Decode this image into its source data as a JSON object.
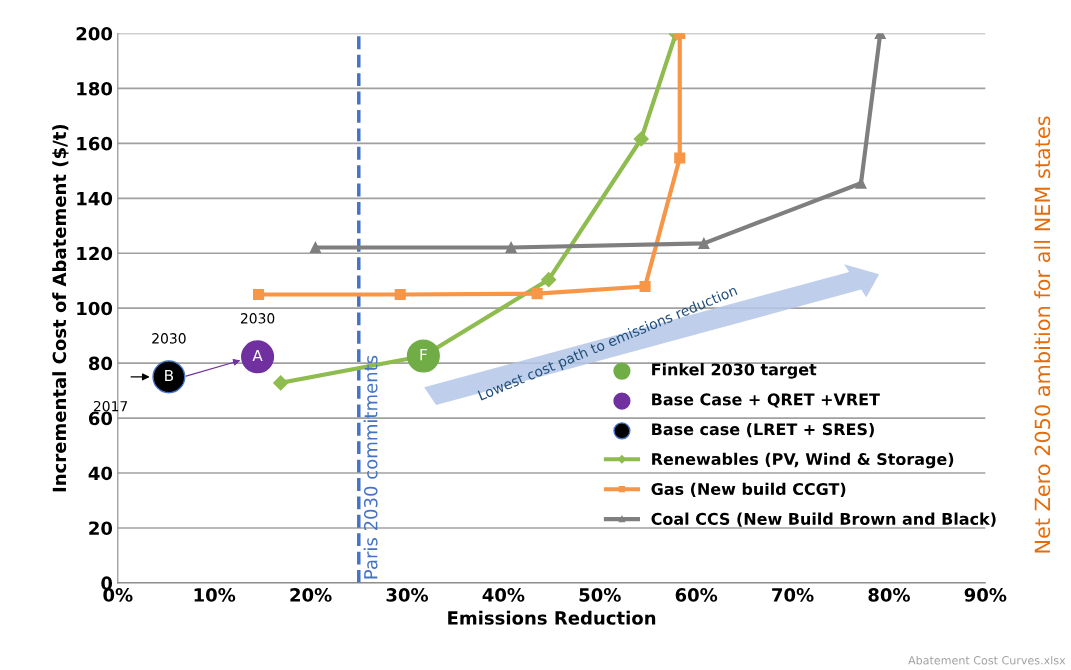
{
  "chart_data": {
    "type": "line",
    "xlabel": "Emissions Reduction",
    "ylabel": "Incremental Cost of Abatement ($/t)",
    "y2label": "Net Zero 2050 ambition for all NEM states",
    "xlim": [
      0,
      90
    ],
    "ylim": [
      0,
      200
    ],
    "xticks": [
      {
        "value": 0,
        "label": "0%"
      },
      {
        "value": 10,
        "label": "10%"
      },
      {
        "value": 20,
        "label": "20%"
      },
      {
        "value": 30,
        "label": "30%"
      },
      {
        "value": 40,
        "label": "40%"
      },
      {
        "value": 50,
        "label": "50%"
      },
      {
        "value": 60,
        "label": "60%"
      },
      {
        "value": 70,
        "label": "70%"
      },
      {
        "value": 80,
        "label": "80%"
      },
      {
        "value": 90,
        "label": "90%"
      }
    ],
    "yticks": [
      0,
      20,
      40,
      60,
      80,
      100,
      120,
      140,
      160,
      180,
      200
    ],
    "grid": "y",
    "legend": "right",
    "series": [
      {
        "name": "Finkel 2030 target",
        "type": "scatter",
        "marker": "circle",
        "color": "#70ad47",
        "x": [
          31.7
        ],
        "values": [
          82.6
        ]
      },
      {
        "name": "Base Case + QRET +VRET",
        "type": "scatter",
        "marker": "circle",
        "color": "#7030a0",
        "x": [
          14.5
        ],
        "values": [
          82.3
        ]
      },
      {
        "name": "Base case (LRET + SRES)",
        "type": "scatter",
        "marker": "circle",
        "color": "#000000",
        "x": [
          5.3
        ],
        "values": [
          75
        ]
      },
      {
        "name": "Renewables (PV, Wind & Storage)",
        "marker": "diamond",
        "color": "#8fbc4f",
        "x": [
          16.9,
          31.7,
          44.7,
          54.3,
          57.9
        ],
        "values": [
          72.8,
          82.6,
          110.4,
          161.6,
          200
        ]
      },
      {
        "name": "Gas (New build CCGT)",
        "marker": "square",
        "color": "#f79646",
        "x": [
          14.6,
          29.3,
          43.5,
          54.7,
          58.3,
          58.3
        ],
        "values": [
          105,
          105,
          105.3,
          107.9,
          154.7,
          200
        ]
      },
      {
        "name": "Coal CCS (New Build Brown and Black)",
        "marker": "triangle",
        "color": "#7f7f7f",
        "x": [
          20.5,
          40.8,
          60.8,
          77.1,
          79.1
        ],
        "values": [
          122.1,
          122.1,
          123.6,
          145.5,
          200
        ]
      }
    ],
    "ref_lines": [
      {
        "axis": "x",
        "value": 25,
        "label": "Paris 2030 commitments",
        "color": "#4472c4",
        "line_style": "dashed"
      }
    ],
    "annotations": [
      {
        "text": "F",
        "x": 31.7,
        "y": 82.6
      },
      {
        "text": "A",
        "x": 14.5,
        "y": 82.3
      },
      {
        "text": "B",
        "x": 5.3,
        "y": 75
      },
      {
        "text": "2030",
        "x": 14.5,
        "y": 82.3
      },
      {
        "text": "2030",
        "x": 5.3,
        "y": 75
      },
      "2017",
      "Lowest cost path to emissions reduction",
      "Abatement Cost Curves.xlsx"
    ]
  }
}
